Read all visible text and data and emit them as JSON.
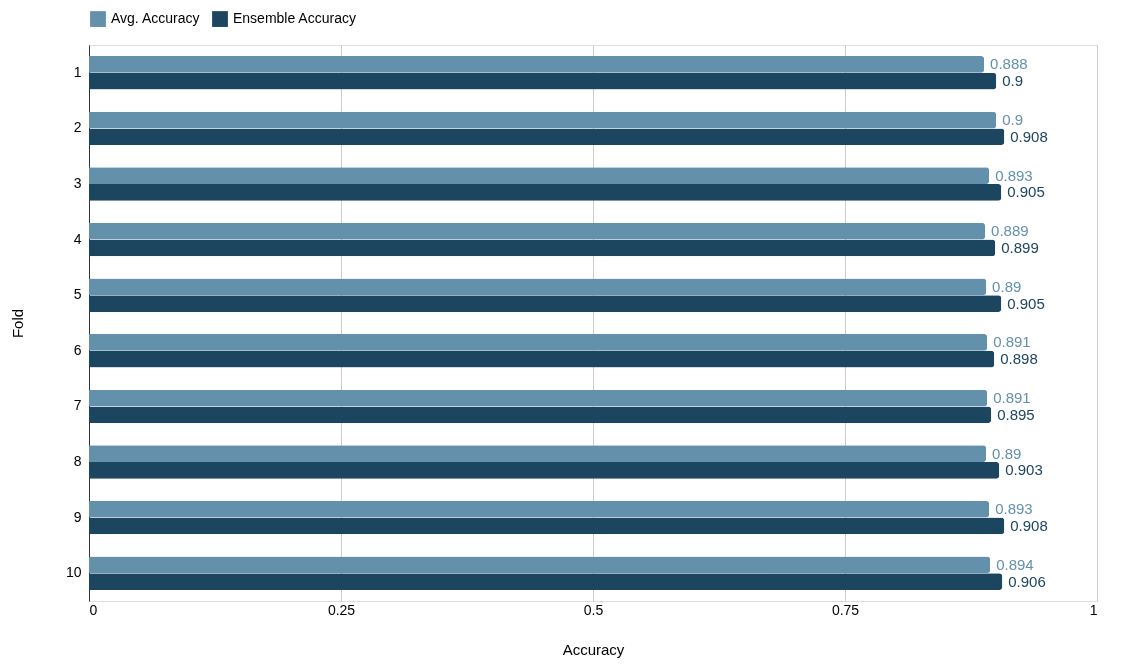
{
  "chart_data": {
    "type": "bar",
    "orientation": "horizontal",
    "xlabel": "Accuracy",
    "ylabel": "Fold",
    "categories": [
      "1",
      "2",
      "3",
      "4",
      "5",
      "6",
      "7",
      "8",
      "9",
      "10"
    ],
    "series": [
      {
        "name": "Avg. Accuracy",
        "color": "#6390ab",
        "values": [
          0.888,
          0.9,
          0.893,
          0.889,
          0.89,
          0.891,
          0.891,
          0.89,
          0.893,
          0.894
        ]
      },
      {
        "name": "Ensemble Accuracy",
        "color": "#1c4560",
        "values": [
          0.9,
          0.908,
          0.905,
          0.899,
          0.905,
          0.898,
          0.895,
          0.903,
          0.908,
          0.906
        ]
      }
    ],
    "xlim": [
      0,
      1
    ],
    "xticks": [
      0,
      0.25,
      0.5,
      0.75,
      1
    ],
    "grid": "x",
    "legend": "top",
    "data_labels": true
  }
}
